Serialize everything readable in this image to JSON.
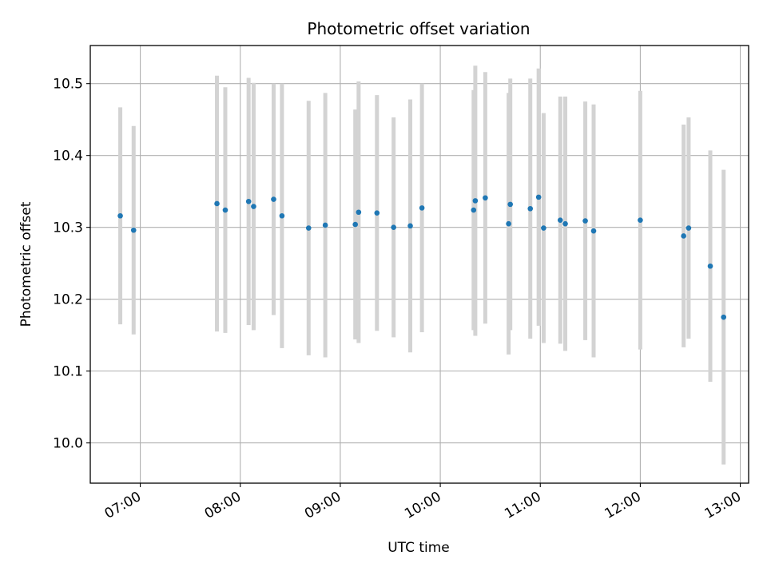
{
  "chart_data": {
    "type": "scatter",
    "title": "Photometric offset variation",
    "xlabel": "UTC time",
    "ylabel": "Photometric offset",
    "x_tick_labels": [
      "07:00",
      "08:00",
      "09:00",
      "10:00",
      "11:00",
      "12:00",
      "13:00"
    ],
    "x_tick_hours": [
      7,
      8,
      9,
      10,
      11,
      12,
      13
    ],
    "y_ticks": [
      10.0,
      10.1,
      10.2,
      10.3,
      10.4,
      10.5
    ],
    "y_tick_labels": [
      "10.0",
      "10.1",
      "10.2",
      "10.3",
      "10.4",
      "10.5"
    ],
    "xlim": [
      "06:30",
      "13:05"
    ],
    "ylim": [
      9.944,
      10.553
    ],
    "grid": true,
    "colors": {
      "point": "#1f77b4",
      "errorbar": "#d3d3d3",
      "grid": "#b0b0b0"
    },
    "points": [
      {
        "x": "06:48",
        "y": 10.316,
        "err": 0.151
      },
      {
        "x": "06:56",
        "y": 10.296,
        "err": 0.145
      },
      {
        "x": "07:46",
        "y": 10.333,
        "err": 0.178
      },
      {
        "x": "07:51",
        "y": 10.324,
        "err": 0.171
      },
      {
        "x": "08:05",
        "y": 10.336,
        "err": 0.172
      },
      {
        "x": "08:08",
        "y": 10.329,
        "err": 0.172
      },
      {
        "x": "08:20",
        "y": 10.339,
        "err": 0.161
      },
      {
        "x": "08:25",
        "y": 10.316,
        "err": 0.184
      },
      {
        "x": "08:41",
        "y": 10.299,
        "err": 0.177
      },
      {
        "x": "08:51",
        "y": 10.303,
        "err": 0.184
      },
      {
        "x": "09:09",
        "y": 10.304,
        "err": 0.16
      },
      {
        "x": "09:11",
        "y": 10.321,
        "err": 0.182
      },
      {
        "x": "09:22",
        "y": 10.32,
        "err": 0.164
      },
      {
        "x": "09:32",
        "y": 10.3,
        "err": 0.153
      },
      {
        "x": "09:42",
        "y": 10.302,
        "err": 0.176
      },
      {
        "x": "09:49",
        "y": 10.327,
        "err": 0.173
      },
      {
        "x": "10:20",
        "y": 10.324,
        "err": 0.167
      },
      {
        "x": "10:21",
        "y": 10.337,
        "err": 0.188
      },
      {
        "x": "10:27",
        "y": 10.341,
        "err": 0.175
      },
      {
        "x": "10:41",
        "y": 10.305,
        "err": 0.182
      },
      {
        "x": "10:42",
        "y": 10.332,
        "err": 0.175
      },
      {
        "x": "10:54",
        "y": 10.326,
        "err": 0.181
      },
      {
        "x": "10:59",
        "y": 10.342,
        "err": 0.179
      },
      {
        "x": "11:02",
        "y": 10.299,
        "err": 0.16
      },
      {
        "x": "11:12",
        "y": 10.31,
        "err": 0.172
      },
      {
        "x": "11:15",
        "y": 10.305,
        "err": 0.177
      },
      {
        "x": "11:27",
        "y": 10.309,
        "err": 0.166
      },
      {
        "x": "11:32",
        "y": 10.295,
        "err": 0.176
      },
      {
        "x": "12:00",
        "y": 10.31,
        "err": 0.18
      },
      {
        "x": "12:26",
        "y": 10.288,
        "err": 0.155
      },
      {
        "x": "12:29",
        "y": 10.299,
        "err": 0.154
      },
      {
        "x": "12:42",
        "y": 10.246,
        "err": 0.161
      },
      {
        "x": "12:50",
        "y": 10.175,
        "err": 0.205
      }
    ]
  }
}
